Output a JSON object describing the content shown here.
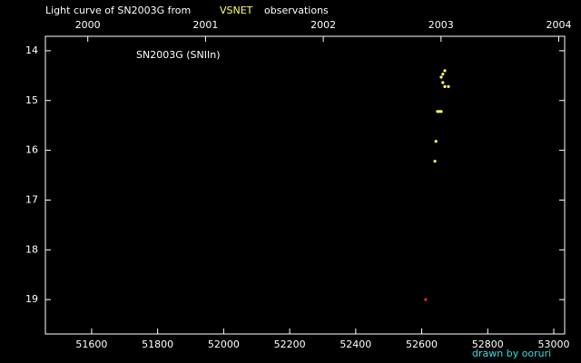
{
  "chart_data": {
    "type": "scatter",
    "title_parts": [
      "Light curve of SN2003G from",
      "VSNET",
      "observations"
    ],
    "label": "SN2003G (SNIIn)",
    "credit": "drawn by ooruri",
    "xlim": [
      51460,
      53033
    ],
    "xticks": [
      51600,
      51800,
      52000,
      52200,
      52400,
      52600,
      52800,
      53000
    ],
    "x2lim": [
      1999.64,
      2004.05
    ],
    "x2ticks": [
      2000,
      2001,
      2002,
      2003,
      2004
    ],
    "ylim": [
      13.71,
      19.69
    ],
    "yticks": [
      14,
      15,
      16,
      17,
      18,
      19
    ],
    "inverted_y": true,
    "series": [
      {
        "color": "#ffff66",
        "x": [
          52670,
          52664,
          52659,
          52664,
          52670,
          52681,
          52648,
          52654,
          52659,
          52643,
          52640
        ],
        "values": [
          14.4,
          14.47,
          14.53,
          14.64,
          14.72,
          14.72,
          15.22,
          15.22,
          15.22,
          15.82,
          16.22
        ]
      },
      {
        "color": "#ff2020",
        "x": [
          52612
        ],
        "values": [
          19.0
        ]
      }
    ]
  }
}
